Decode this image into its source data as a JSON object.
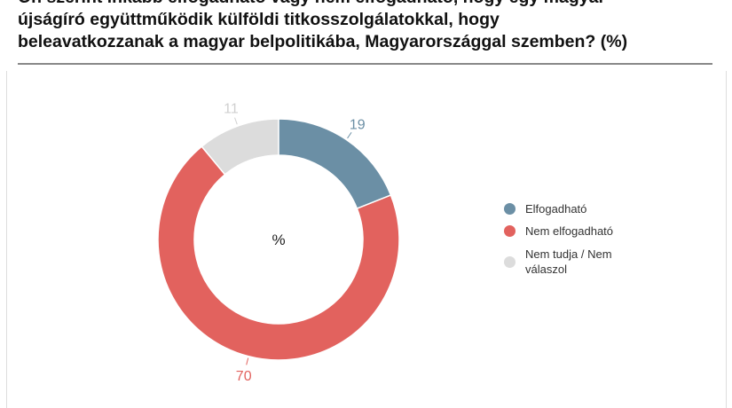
{
  "title_lines": [
    "Ön szerint inkább elfogadható vagy nem elfogadható, hogy egy magyar",
    "újságíró együttműködik külföldi titkosszolgálatokkal, hogy",
    "beleavatkozzanak a magyar belpolitikába, Magyarországgal szemben? (%)"
  ],
  "chart_data": {
    "type": "pie",
    "donut": true,
    "center_label": "%",
    "categories": [
      "Elfogadható",
      "Nem elfogadható",
      "Nem tudja / Nem válaszol"
    ],
    "values": [
      19,
      70,
      11
    ],
    "colors": [
      "#6b8fa5",
      "#e2625e",
      "#dcdcdc"
    ],
    "label_colors": [
      "#6b8fa5",
      "#e2625e",
      "#d0d0d0"
    ],
    "data_labels": [
      "19",
      "70",
      "11"
    ],
    "legend_position": "right"
  }
}
